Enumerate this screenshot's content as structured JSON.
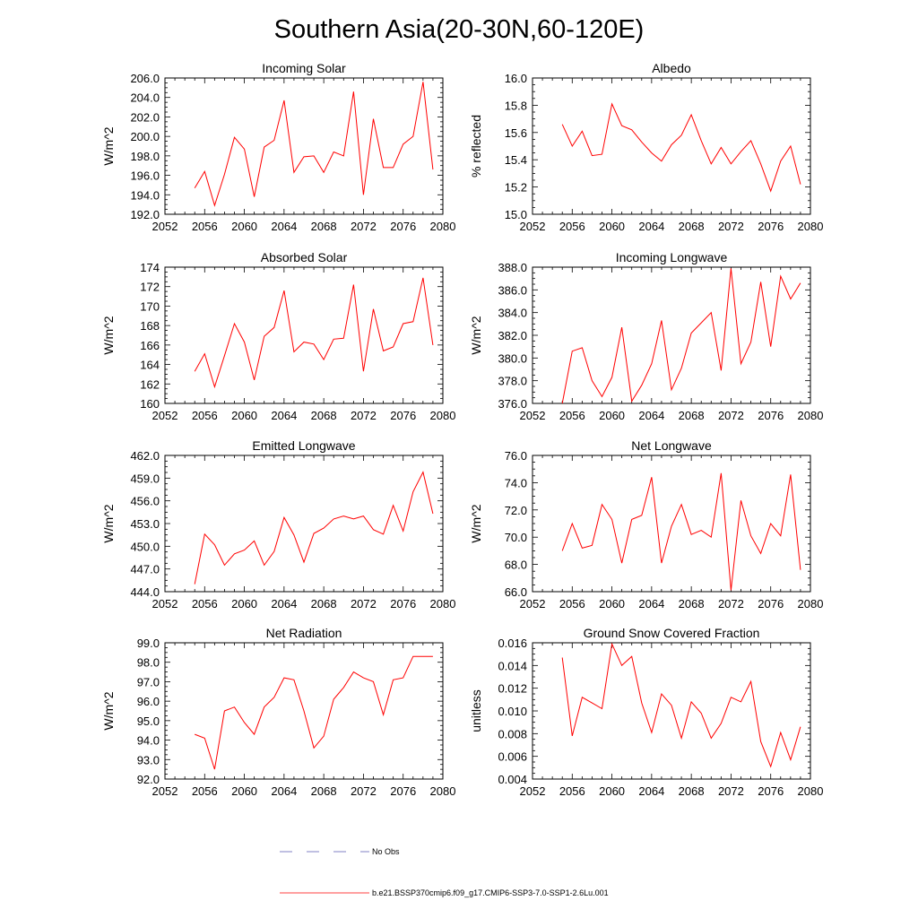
{
  "title": "Southern Asia(20-30N,60-120E)",
  "legend": {
    "obs_label": "No Obs",
    "model_label": "b.e21.BSSP370cmip6.f09_g17.CMIP6-SSP3-7.0-SSP1-2.6Lu.001",
    "obs_color": "#5a5ab4",
    "model_color": "#ff0000"
  },
  "colors": {
    "series": "#ff0000",
    "axis": "#000000"
  },
  "chart_data": [
    {
      "type": "line",
      "title": "Incoming Solar",
      "ylabel": "W/m^2",
      "xlim": [
        2052,
        2080
      ],
      "xticks": [
        2052,
        2056,
        2060,
        2064,
        2068,
        2072,
        2076,
        2080
      ],
      "ylim": [
        192,
        206
      ],
      "yticks": [
        "192.0",
        "194.0",
        "196.0",
        "198.0",
        "200.0",
        "202.0",
        "204.0",
        "206.0"
      ],
      "ytick_values": [
        192,
        194,
        196,
        198,
        200,
        202,
        204,
        206
      ],
      "x": [
        2055,
        2056,
        2057,
        2058,
        2059,
        2060,
        2061,
        2062,
        2063,
        2064,
        2065,
        2066,
        2067,
        2068,
        2069,
        2070,
        2071,
        2072,
        2073,
        2074,
        2075,
        2076,
        2077,
        2078,
        2079
      ],
      "series": [
        {
          "name": "b.e21.BSSP370cmip6.f09_g17.CMIP6-SSP3-7.0-SSP1-2.6Lu.001",
          "values": [
            194.7,
            196.4,
            192.9,
            196.1,
            199.9,
            198.7,
            193.8,
            198.9,
            199.6,
            203.7,
            196.3,
            197.9,
            198.0,
            196.3,
            198.4,
            198.0,
            204.6,
            194.0,
            201.8,
            196.8,
            196.8,
            199.2,
            200.0,
            205.6,
            196.6
          ]
        }
      ]
    },
    {
      "type": "line",
      "title": "Albedo",
      "ylabel": "% reflected",
      "xlim": [
        2052,
        2080
      ],
      "xticks": [
        2052,
        2056,
        2060,
        2064,
        2068,
        2072,
        2076,
        2080
      ],
      "ylim": [
        15.0,
        16.0
      ],
      "yticks": [
        "15.0",
        "15.2",
        "15.4",
        "15.6",
        "15.8",
        "16.0"
      ],
      "ytick_values": [
        15.0,
        15.2,
        15.4,
        15.6,
        15.8,
        16.0
      ],
      "x": [
        2055,
        2056,
        2057,
        2058,
        2059,
        2060,
        2061,
        2062,
        2063,
        2064,
        2065,
        2066,
        2067,
        2068,
        2069,
        2070,
        2071,
        2072,
        2073,
        2074,
        2075,
        2076,
        2077,
        2078,
        2079
      ],
      "series": [
        {
          "name": "b.e21.BSSP370cmip6.f09_g17.CMIP6-SSP3-7.0-SSP1-2.6Lu.001",
          "values": [
            15.66,
            15.5,
            15.61,
            15.43,
            15.44,
            15.81,
            15.65,
            15.62,
            15.53,
            15.45,
            15.39,
            15.51,
            15.58,
            15.73,
            15.54,
            15.37,
            15.49,
            15.37,
            15.46,
            15.54,
            15.37,
            15.17,
            15.39,
            15.5,
            15.22
          ]
        }
      ]
    },
    {
      "type": "line",
      "title": "Absorbed Solar",
      "ylabel": "W/m^2",
      "xlim": [
        2052,
        2080
      ],
      "xticks": [
        2052,
        2056,
        2060,
        2064,
        2068,
        2072,
        2076,
        2080
      ],
      "ylim": [
        160,
        174
      ],
      "yticks": [
        "160",
        "162",
        "164",
        "166",
        "168",
        "170",
        "172",
        "174"
      ],
      "ytick_values": [
        160,
        162,
        164,
        166,
        168,
        170,
        172,
        174
      ],
      "x": [
        2055,
        2056,
        2057,
        2058,
        2059,
        2060,
        2061,
        2062,
        2063,
        2064,
        2065,
        2066,
        2067,
        2068,
        2069,
        2070,
        2071,
        2072,
        2073,
        2074,
        2075,
        2076,
        2077,
        2078,
        2079
      ],
      "series": [
        {
          "name": "b.e21.BSSP370cmip6.f09_g17.CMIP6-SSP3-7.0-SSP1-2.6Lu.001",
          "values": [
            163.3,
            165.1,
            161.7,
            164.9,
            168.2,
            166.3,
            162.4,
            166.9,
            167.8,
            171.6,
            165.3,
            166.3,
            166.1,
            164.5,
            166.6,
            166.7,
            172.2,
            163.3,
            169.7,
            165.4,
            165.8,
            168.2,
            168.4,
            172.9,
            166.0
          ]
        }
      ]
    },
    {
      "type": "line",
      "title": "Incoming Longwave",
      "ylabel": "W/m^2",
      "xlim": [
        2052,
        2080
      ],
      "xticks": [
        2052,
        2056,
        2060,
        2064,
        2068,
        2072,
        2076,
        2080
      ],
      "ylim": [
        376,
        388
      ],
      "yticks": [
        "376.0",
        "378.0",
        "380.0",
        "382.0",
        "384.0",
        "386.0",
        "388.0"
      ],
      "ytick_values": [
        376,
        378,
        380,
        382,
        384,
        386,
        388
      ],
      "x": [
        2055,
        2056,
        2057,
        2058,
        2059,
        2060,
        2061,
        2062,
        2063,
        2064,
        2065,
        2066,
        2067,
        2068,
        2069,
        2070,
        2071,
        2072,
        2073,
        2074,
        2075,
        2076,
        2077,
        2078,
        2079
      ],
      "series": [
        {
          "name": "b.e21.BSSP370cmip6.f09_g17.CMIP6-SSP3-7.0-SSP1-2.6Lu.001",
          "values": [
            376.0,
            380.6,
            380.9,
            378.0,
            376.6,
            378.3,
            382.7,
            376.2,
            377.6,
            379.5,
            383.3,
            377.2,
            379.1,
            382.2,
            383.1,
            384.0,
            378.9,
            387.9,
            379.5,
            381.4,
            386.7,
            381.0,
            387.2,
            385.2,
            386.6
          ]
        }
      ]
    },
    {
      "type": "line",
      "title": "Emitted Longwave",
      "ylabel": "W/m^2",
      "xlim": [
        2052,
        2080
      ],
      "xticks": [
        2052,
        2056,
        2060,
        2064,
        2068,
        2072,
        2076,
        2080
      ],
      "ylim": [
        444,
        462
      ],
      "yticks": [
        "444.0",
        "447.0",
        "450.0",
        "453.0",
        "456.0",
        "459.0",
        "462.0"
      ],
      "ytick_values": [
        444,
        447,
        450,
        453,
        456,
        459,
        462
      ],
      "x": [
        2055,
        2056,
        2057,
        2058,
        2059,
        2060,
        2061,
        2062,
        2063,
        2064,
        2065,
        2066,
        2067,
        2068,
        2069,
        2070,
        2071,
        2072,
        2073,
        2074,
        2075,
        2076,
        2077,
        2078,
        2079
      ],
      "series": [
        {
          "name": "b.e21.BSSP370cmip6.f09_g17.CMIP6-SSP3-7.0-SSP1-2.6Lu.001",
          "values": [
            445.0,
            451.6,
            450.2,
            447.5,
            449.0,
            449.5,
            450.7,
            447.5,
            449.3,
            453.8,
            451.5,
            447.9,
            451.7,
            452.4,
            453.6,
            454.0,
            453.6,
            454.0,
            452.2,
            451.6,
            455.4,
            452.0,
            457.2,
            459.8,
            454.3
          ]
        }
      ]
    },
    {
      "type": "line",
      "title": "Net Longwave",
      "ylabel": "W/m^2",
      "xlim": [
        2052,
        2080
      ],
      "xticks": [
        2052,
        2056,
        2060,
        2064,
        2068,
        2072,
        2076,
        2080
      ],
      "ylim": [
        66,
        76
      ],
      "yticks": [
        "66.0",
        "68.0",
        "70.0",
        "72.0",
        "74.0",
        "76.0"
      ],
      "ytick_values": [
        66,
        68,
        70,
        72,
        74,
        76
      ],
      "x": [
        2055,
        2056,
        2057,
        2058,
        2059,
        2060,
        2061,
        2062,
        2063,
        2064,
        2065,
        2066,
        2067,
        2068,
        2069,
        2070,
        2071,
        2072,
        2073,
        2074,
        2075,
        2076,
        2077,
        2078,
        2079
      ],
      "series": [
        {
          "name": "b.e21.BSSP370cmip6.f09_g17.CMIP6-SSP3-7.0-SSP1-2.6Lu.001",
          "values": [
            69.0,
            71.0,
            69.2,
            69.4,
            72.4,
            71.3,
            68.1,
            71.3,
            71.6,
            74.4,
            68.1,
            70.8,
            72.4,
            70.2,
            70.5,
            70.0,
            74.7,
            66.1,
            72.7,
            70.1,
            68.8,
            71.0,
            70.1,
            74.6,
            67.6
          ]
        }
      ]
    },
    {
      "type": "line",
      "title": "Net Radiation",
      "ylabel": "W/m^2",
      "xlim": [
        2052,
        2080
      ],
      "xticks": [
        2052,
        2056,
        2060,
        2064,
        2068,
        2072,
        2076,
        2080
      ],
      "ylim": [
        92,
        99
      ],
      "yticks": [
        "92.0",
        "93.0",
        "94.0",
        "95.0",
        "96.0",
        "97.0",
        "98.0",
        "99.0"
      ],
      "ytick_values": [
        92,
        93,
        94,
        95,
        96,
        97,
        98,
        99
      ],
      "x": [
        2055,
        2056,
        2057,
        2058,
        2059,
        2060,
        2061,
        2062,
        2063,
        2064,
        2065,
        2066,
        2067,
        2068,
        2069,
        2070,
        2071,
        2072,
        2073,
        2074,
        2075,
        2076,
        2077,
        2078,
        2079
      ],
      "series": [
        {
          "name": "b.e21.BSSP370cmip6.f09_g17.CMIP6-SSP3-7.0-SSP1-2.6Lu.001",
          "values": [
            94.3,
            94.1,
            92.5,
            95.5,
            95.7,
            94.9,
            94.3,
            95.7,
            96.2,
            97.2,
            97.1,
            95.5,
            93.6,
            94.2,
            96.1,
            96.7,
            97.5,
            97.2,
            97.0,
            95.3,
            97.1,
            97.2,
            98.3,
            98.3,
            98.3
          ]
        }
      ]
    },
    {
      "type": "line",
      "title": "Ground Snow Covered Fraction",
      "ylabel": "unitless",
      "xlim": [
        2052,
        2080
      ],
      "xticks": [
        2052,
        2056,
        2060,
        2064,
        2068,
        2072,
        2076,
        2080
      ],
      "ylim": [
        0.004,
        0.016
      ],
      "yticks": [
        "0.004",
        "0.006",
        "0.008",
        "0.010",
        "0.012",
        "0.014",
        "0.016"
      ],
      "ytick_values": [
        0.004,
        0.006,
        0.008,
        0.01,
        0.012,
        0.014,
        0.016
      ],
      "x": [
        2055,
        2056,
        2057,
        2058,
        2059,
        2060,
        2061,
        2062,
        2063,
        2064,
        2065,
        2066,
        2067,
        2068,
        2069,
        2070,
        2071,
        2072,
        2073,
        2074,
        2075,
        2076,
        2077,
        2078,
        2079
      ],
      "series": [
        {
          "name": "b.e21.BSSP370cmip6.f09_g17.CMIP6-SSP3-7.0-SSP1-2.6Lu.001",
          "values": [
            0.0147,
            0.0078,
            0.0112,
            0.0107,
            0.0102,
            0.0159,
            0.014,
            0.0148,
            0.0107,
            0.0081,
            0.0115,
            0.0105,
            0.0076,
            0.0108,
            0.0098,
            0.0076,
            0.0089,
            0.0112,
            0.0108,
            0.0126,
            0.0073,
            0.0051,
            0.0081,
            0.0057,
            0.0086
          ]
        }
      ]
    }
  ]
}
